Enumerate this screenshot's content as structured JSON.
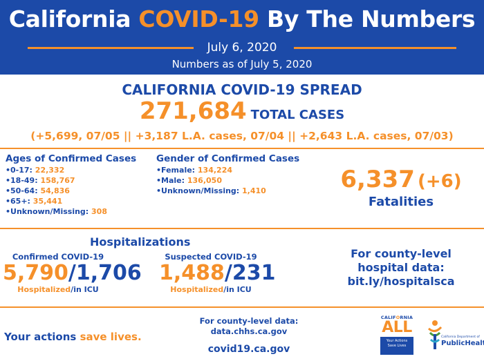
{
  "header": {
    "title_part1": "California ",
    "title_highlight": "COVID-19",
    "title_part2": " By The Numbers",
    "date": "July 6, 2020",
    "as_of": "Numbers as of July 5, 2020"
  },
  "spread": {
    "title": "CALIFORNIA COVID-19 SPREAD",
    "total_cases": "271,684",
    "total_cases_label": "TOTAL CASES",
    "increments": "(+5,699, 07/05 || +3,187 L.A. cases, 07/04 || +2,643 L.A. cases, 07/03)"
  },
  "ages": {
    "title": "Ages of Confirmed Cases",
    "items": [
      {
        "label": "0-17: ",
        "value": "22,332"
      },
      {
        "label": "18-49: ",
        "value": "158,767"
      },
      {
        "label": "50-64: ",
        "value": "54,836"
      },
      {
        "label": "65+: ",
        "value": "35,441"
      },
      {
        "label": "Unknown/Missing: ",
        "value": "308"
      }
    ]
  },
  "gender": {
    "title": "Gender of Confirmed Cases",
    "items": [
      {
        "label": "Female: ",
        "value": "134,224"
      },
      {
        "label": "Male: ",
        "value": "136,050"
      },
      {
        "label": "Unknown/Missing: ",
        "value": "1,410"
      }
    ]
  },
  "fatalities": {
    "count": "6,337",
    "increment": "(+6)",
    "label": "Fatalities"
  },
  "hospitalizations": {
    "title": "Hospitalizations",
    "confirmed": {
      "caption": "Confirmed COVID-19",
      "hospitalized": "5,790",
      "separator": "/",
      "icu": "1,706",
      "sub_hosp": "Hospitalized",
      "sub_icu": "/in ICU"
    },
    "suspected": {
      "caption": "Suspected COVID-19",
      "hospitalized": "1,488",
      "separator": "/",
      "icu": "231",
      "sub_hosp": "Hospitalized",
      "sub_icu": "/in ICU"
    }
  },
  "county_hospital": {
    "line1": "For county-level",
    "line2": "hospital data:",
    "line3": "bit.ly/hospitalsca"
  },
  "footer": {
    "actions_part1": "Your actions ",
    "actions_part2": "save lives.",
    "county_data_line1": "For county-level data:",
    "county_data_line2": "data.chhs.ca.gov",
    "website": "covid19.ca.gov",
    "logo_all_top_1": "CALIF",
    "logo_all_top_2": "O",
    "logo_all_top_3": "RNIA",
    "logo_all_word": "ALL",
    "logo_all_box_1": "Your Actions",
    "logo_all_box_2": "Save Lives",
    "logo_ph_dept": "California Department of",
    "logo_ph_name": "PublicHealth"
  },
  "colors": {
    "brand_blue": "#1c4aa8",
    "accent_orange": "#f5902a"
  }
}
